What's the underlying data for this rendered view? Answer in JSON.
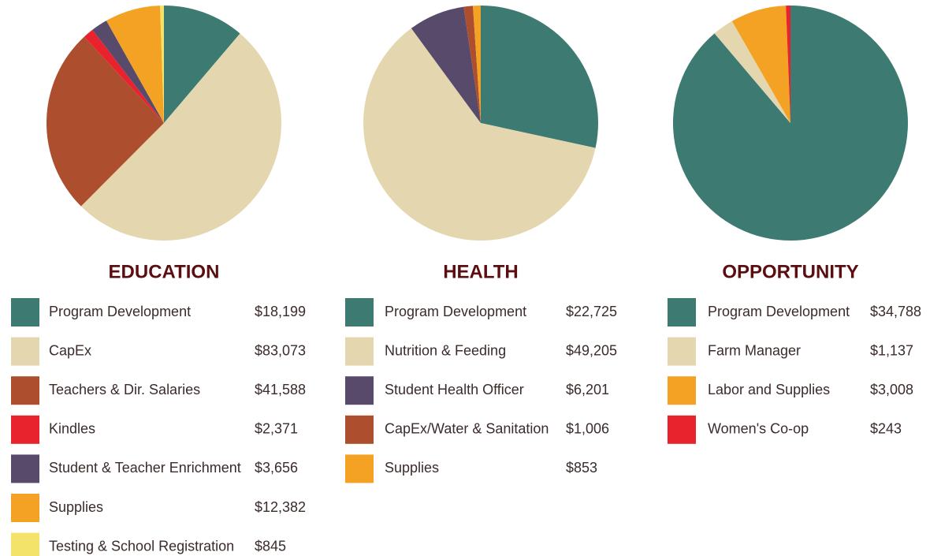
{
  "chart_data": [
    {
      "type": "pie",
      "title": "EDUCATION",
      "categories": [
        "Program Development",
        "CapEx",
        "Teachers & Dir. Salaries",
        "Kindles",
        "Student & Teacher Enrichment",
        "Supplies",
        "Testing & School Registration"
      ],
      "values": [
        18199,
        83073,
        41588,
        2371,
        3656,
        12382,
        845
      ],
      "value_labels": [
        "$18,199",
        "$83,073",
        "$41,588",
        "$2,371",
        "$3,656",
        "$12,382",
        "$845"
      ],
      "colors": [
        "#3d7a72",
        "#e4d7b0",
        "#ad4e2e",
        "#e8232e",
        "#574a6b",
        "#f4a224",
        "#f4e36a"
      ]
    },
    {
      "type": "pie",
      "title": "HEALTH",
      "categories": [
        "Program Development",
        "Nutrition & Feeding",
        "Student Health Officer",
        "CapEx/Water & Sanitation",
        "Supplies"
      ],
      "values": [
        22725,
        49205,
        6201,
        1006,
        853
      ],
      "value_labels": [
        "$22,725",
        "$49,205",
        "$6,201",
        "$1,006",
        "$853"
      ],
      "colors": [
        "#3d7a72",
        "#e4d7b0",
        "#574a6b",
        "#ad4e2e",
        "#f4a224"
      ]
    },
    {
      "type": "pie",
      "title": "OPPORTUNITY",
      "categories": [
        "Program Development",
        "Farm Manager",
        "Labor and Supplies",
        "Women's Co-op"
      ],
      "values": [
        34788,
        1137,
        3008,
        243
      ],
      "value_labels": [
        "$34,788",
        "$1,137",
        "$3,008",
        "$243"
      ],
      "colors": [
        "#3d7a72",
        "#e4d7b0",
        "#f4a224",
        "#e8232e"
      ]
    }
  ]
}
